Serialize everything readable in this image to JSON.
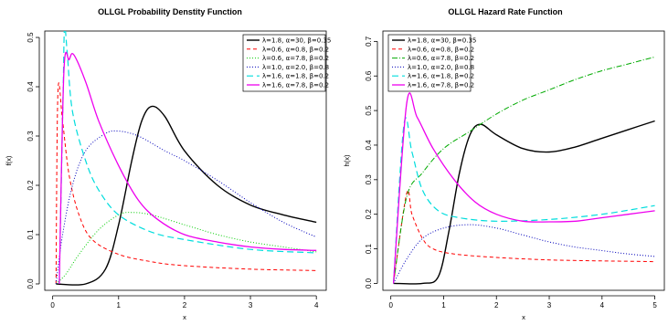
{
  "chart_data": [
    {
      "type": "line",
      "title": "OLLGL Probability Denstity Function",
      "xlabel": "x",
      "ylabel": "f(x)",
      "xlim": [
        0,
        4
      ],
      "ylim": [
        0,
        0.5
      ],
      "xticks": [
        "0",
        "1",
        "2",
        "3",
        "4"
      ],
      "yticks": [
        "0.0",
        "0.1",
        "0.2",
        "0.3",
        "0.4",
        "0.5"
      ],
      "grid": false,
      "legend_position": "top-right",
      "series": [
        {
          "name": "λ=1.8, α=30, β=0.35",
          "color": "#000000",
          "dash": "solid",
          "width": 1.4,
          "points": [
            [
              0.05,
              0
            ],
            [
              0.5,
              0
            ],
            [
              0.8,
              0.03
            ],
            [
              1.0,
              0.12
            ],
            [
              1.2,
              0.25
            ],
            [
              1.35,
              0.33
            ],
            [
              1.5,
              0.36
            ],
            [
              1.7,
              0.34
            ],
            [
              2.0,
              0.27
            ],
            [
              2.5,
              0.2
            ],
            [
              3.0,
              0.16
            ],
            [
              3.5,
              0.14
            ],
            [
              4.0,
              0.125
            ]
          ]
        },
        {
          "name": "λ=0.6, α=0.8, β=0.2",
          "color": "#ff0000",
          "dash": "4,3",
          "width": 1.0,
          "points": [
            [
              0.05,
              0
            ],
            [
              0.08,
              0.39
            ],
            [
              0.15,
              0.33
            ],
            [
              0.25,
              0.22
            ],
            [
              0.4,
              0.14
            ],
            [
              0.6,
              0.09
            ],
            [
              1.0,
              0.06
            ],
            [
              1.5,
              0.045
            ],
            [
              2.0,
              0.037
            ],
            [
              3.0,
              0.03
            ],
            [
              4.0,
              0.027
            ]
          ]
        },
        {
          "name": "λ=0.6, α=7.8, β=0.2",
          "color": "#00cc00",
          "dash": "1,2",
          "width": 1.0,
          "points": [
            [
              0.05,
              0
            ],
            [
              0.2,
              0.02
            ],
            [
              0.4,
              0.06
            ],
            [
              0.7,
              0.11
            ],
            [
              1.0,
              0.14
            ],
            [
              1.2,
              0.145
            ],
            [
              1.5,
              0.14
            ],
            [
              2.0,
              0.12
            ],
            [
              2.5,
              0.1
            ],
            [
              3.0,
              0.085
            ],
            [
              3.5,
              0.075
            ],
            [
              4.0,
              0.065
            ]
          ]
        },
        {
          "name": "λ=1.0, α=2.0, β=0.8",
          "color": "#0000bb",
          "dash": "1,2",
          "width": 1.0,
          "points": [
            [
              0.05,
              0
            ],
            [
              0.15,
              0.1
            ],
            [
              0.3,
              0.2
            ],
            [
              0.5,
              0.27
            ],
            [
              0.8,
              0.305
            ],
            [
              1.0,
              0.31
            ],
            [
              1.3,
              0.3
            ],
            [
              1.7,
              0.27
            ],
            [
              2.0,
              0.25
            ],
            [
              2.5,
              0.21
            ],
            [
              3.0,
              0.165
            ],
            [
              3.5,
              0.125
            ],
            [
              4.0,
              0.095
            ]
          ]
        },
        {
          "name": "λ=1.6, α=1.8, β=0.2",
          "color": "#00dddd",
          "dash": "7,4",
          "width": 1.2,
          "points": [
            [
              0.1,
              0
            ],
            [
              0.13,
              0.2
            ],
            [
              0.16,
              0.4
            ],
            [
              0.18,
              0.52
            ],
            [
              0.22,
              0.47
            ],
            [
              0.3,
              0.35
            ],
            [
              0.5,
              0.25
            ],
            [
              0.7,
              0.19
            ],
            [
              1.0,
              0.14
            ],
            [
              1.5,
              0.105
            ],
            [
              2.0,
              0.09
            ],
            [
              3.0,
              0.07
            ],
            [
              4.0,
              0.063
            ]
          ]
        },
        {
          "name": "λ=1.6, α=7.8, β=0.2",
          "color": "#ee00ee",
          "dash": "solid",
          "width": 1.3,
          "points": [
            [
              0.1,
              0
            ],
            [
              0.17,
              0.43
            ],
            [
              0.25,
              0.455
            ],
            [
              0.32,
              0.465
            ],
            [
              0.5,
              0.41
            ],
            [
              0.7,
              0.33
            ],
            [
              1.0,
              0.24
            ],
            [
              1.3,
              0.17
            ],
            [
              1.6,
              0.13
            ],
            [
              2.0,
              0.1
            ],
            [
              2.5,
              0.085
            ],
            [
              3.0,
              0.075
            ],
            [
              3.5,
              0.07
            ],
            [
              4.0,
              0.068
            ]
          ]
        }
      ]
    },
    {
      "type": "line",
      "title": "OLLGL Hazard Rate Function",
      "xlabel": "x",
      "ylabel": "h(x)",
      "xlim": [
        0,
        5
      ],
      "ylim": [
        0,
        0.7
      ],
      "xticks": [
        "0",
        "1",
        "2",
        "3",
        "4",
        "5"
      ],
      "yticks": [
        "0.0",
        "0.1",
        "0.2",
        "0.3",
        "0.4",
        "0.5",
        "0.6",
        "0.7"
      ],
      "grid": false,
      "legend_position": "top-left",
      "series": [
        {
          "name": "λ=1.8, α=30, β=0.35",
          "color": "#000000",
          "dash": "solid",
          "width": 1.4,
          "points": [
            [
              0.05,
              0
            ],
            [
              0.6,
              0
            ],
            [
              0.9,
              0.02
            ],
            [
              1.1,
              0.15
            ],
            [
              1.3,
              0.32
            ],
            [
              1.5,
              0.43
            ],
            [
              1.7,
              0.46
            ],
            [
              2.0,
              0.43
            ],
            [
              2.5,
              0.39
            ],
            [
              3.0,
              0.38
            ],
            [
              3.5,
              0.395
            ],
            [
              4.0,
              0.42
            ],
            [
              4.5,
              0.445
            ],
            [
              5.0,
              0.47
            ]
          ]
        },
        {
          "name": "λ=0.6, α=0.8, β=0.2",
          "color": "#ff0000",
          "dash": "4,3",
          "width": 1.0,
          "points": [
            [
              0.05,
              0
            ],
            [
              0.3,
              0.26
            ],
            [
              0.4,
              0.2
            ],
            [
              0.6,
              0.13
            ],
            [
              0.8,
              0.1
            ],
            [
              1.2,
              0.085
            ],
            [
              2.0,
              0.075
            ],
            [
              3.0,
              0.068
            ],
            [
              4.0,
              0.065
            ],
            [
              5.0,
              0.063
            ]
          ]
        },
        {
          "name": "λ=0.6, α=7.8, β=0.2",
          "color": "#00aa00",
          "dash": "6,2,1,2",
          "width": 1.0,
          "points": [
            [
              0.05,
              0
            ],
            [
              0.3,
              0.25
            ],
            [
              0.6,
              0.32
            ],
            [
              1.0,
              0.39
            ],
            [
              1.5,
              0.44
            ],
            [
              2.0,
              0.49
            ],
            [
              2.5,
              0.53
            ],
            [
              3.0,
              0.56
            ],
            [
              3.5,
              0.59
            ],
            [
              4.0,
              0.615
            ],
            [
              4.5,
              0.635
            ],
            [
              5.0,
              0.655
            ]
          ]
        },
        {
          "name": "λ=1.0, α=2.0, β=0.8",
          "color": "#0000bb",
          "dash": "1,2",
          "width": 1.0,
          "points": [
            [
              0.05,
              0
            ],
            [
              0.3,
              0.07
            ],
            [
              0.6,
              0.13
            ],
            [
              1.0,
              0.16
            ],
            [
              1.5,
              0.17
            ],
            [
              2.0,
              0.16
            ],
            [
              2.5,
              0.14
            ],
            [
              3.0,
              0.12
            ],
            [
              3.5,
              0.105
            ],
            [
              4.0,
              0.095
            ],
            [
              4.5,
              0.085
            ],
            [
              5.0,
              0.078
            ]
          ]
        },
        {
          "name": "λ=1.6, α=1.8, β=0.2",
          "color": "#00dddd",
          "dash": "7,4",
          "width": 1.2,
          "points": [
            [
              0.05,
              0
            ],
            [
              0.25,
              0.46
            ],
            [
              0.4,
              0.38
            ],
            [
              0.6,
              0.27
            ],
            [
              0.9,
              0.21
            ],
            [
              1.3,
              0.19
            ],
            [
              2.0,
              0.18
            ],
            [
              3.0,
              0.185
            ],
            [
              4.0,
              0.2
            ],
            [
              5.0,
              0.225
            ]
          ]
        },
        {
          "name": "λ=1.6, α=7.8, β=0.2",
          "color": "#ee00ee",
          "dash": "solid",
          "width": 1.3,
          "points": [
            [
              0.05,
              0
            ],
            [
              0.3,
              0.52
            ],
            [
              0.5,
              0.48
            ],
            [
              0.8,
              0.39
            ],
            [
              1.2,
              0.3
            ],
            [
              1.6,
              0.235
            ],
            [
              2.0,
              0.2
            ],
            [
              2.5,
              0.18
            ],
            [
              3.0,
              0.178
            ],
            [
              3.5,
              0.18
            ],
            [
              4.0,
              0.19
            ],
            [
              4.5,
              0.2
            ],
            [
              5.0,
              0.21
            ]
          ]
        }
      ]
    }
  ]
}
